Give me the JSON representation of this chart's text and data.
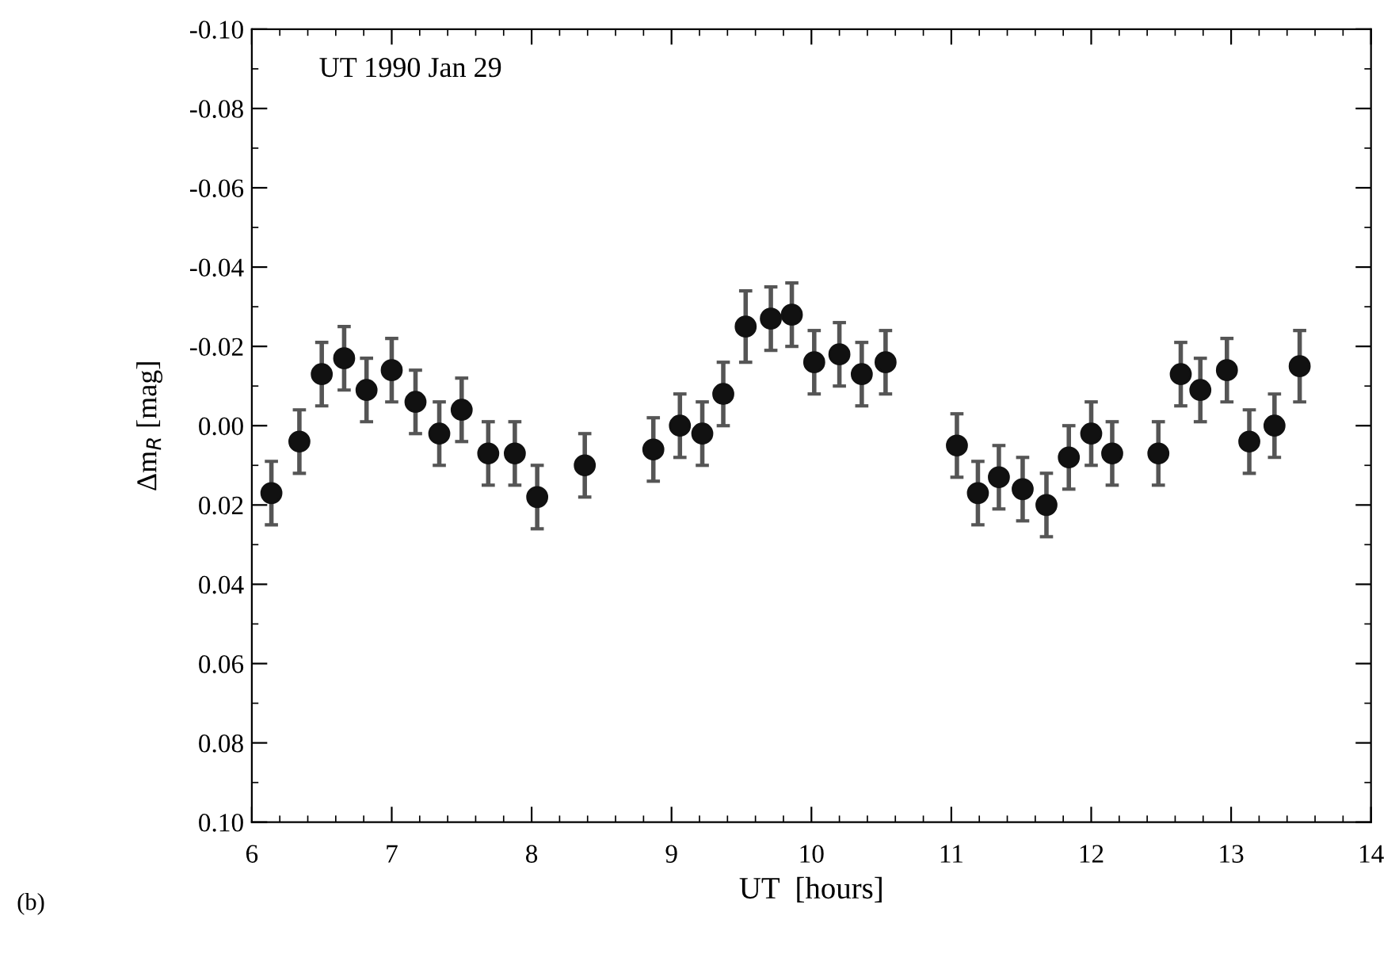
{
  "chart_data": {
    "type": "scatter",
    "xlabel": "UT  [hours]",
    "ylabel": "Δm$_{R}$ [mag]",
    "annotations": [
      "UT 1990 Jan 29",
      "(b)"
    ],
    "x": [
      6.14,
      6.34,
      6.5,
      6.66,
      6.82,
      7.0,
      7.17,
      7.34,
      7.5,
      7.69,
      7.88,
      8.04,
      8.38,
      8.87,
      9.06,
      9.22,
      9.37,
      9.53,
      9.71,
      9.86,
      10.02,
      10.2,
      10.36,
      10.53,
      11.04,
      11.19,
      11.34,
      11.51,
      11.68,
      11.84,
      12.0,
      12.15,
      12.48,
      12.64,
      12.78,
      12.97,
      13.13,
      13.31,
      13.49
    ],
    "values": [
      0.017,
      0.004,
      -0.013,
      -0.017,
      -0.009,
      -0.014,
      -0.006,
      0.002,
      -0.004,
      0.007,
      0.007,
      0.018,
      0.01,
      0.006,
      0.0,
      0.002,
      -0.008,
      -0.025,
      -0.027,
      -0.028,
      -0.016,
      -0.018,
      -0.013,
      -0.016,
      0.005,
      0.017,
      0.013,
      0.016,
      0.02,
      0.008,
      0.002,
      0.007,
      0.007,
      -0.013,
      -0.009,
      -0.014,
      0.004,
      0.0,
      -0.015
    ],
    "errors": [
      0.008,
      0.008,
      0.008,
      0.008,
      0.008,
      0.008,
      0.008,
      0.008,
      0.008,
      0.008,
      0.008,
      0.008,
      0.008,
      0.008,
      0.008,
      0.008,
      0.008,
      0.009,
      0.008,
      0.008,
      0.008,
      0.008,
      0.008,
      0.008,
      0.008,
      0.008,
      0.008,
      0.008,
      0.008,
      0.008,
      0.008,
      0.008,
      0.008,
      0.008,
      0.008,
      0.008,
      0.008,
      0.008,
      0.009
    ],
    "color": "#111111",
    "marker": "circle",
    "grid": false,
    "xlim": [
      6,
      14
    ],
    "xticks": [
      6,
      7,
      8,
      9,
      10,
      11,
      12,
      13,
      14
    ],
    "ylim": [
      0.1,
      -0.1
    ],
    "yticks": [
      {
        "value": -0.1,
        "label": "-0.10"
      },
      {
        "value": -0.08,
        "label": "-0.08"
      },
      {
        "value": -0.06,
        "label": "-0.06"
      },
      {
        "value": -0.04,
        "label": "-0.04"
      },
      {
        "value": -0.02,
        "label": "-0.02"
      },
      {
        "value": 0.0,
        "label": "0.00"
      },
      {
        "value": 0.02,
        "label": "0.02"
      },
      {
        "value": 0.04,
        "label": "0.04"
      },
      {
        "value": 0.06,
        "label": "0.06"
      },
      {
        "value": 0.08,
        "label": "0.08"
      },
      {
        "value": 0.1,
        "label": "0.10"
      }
    ]
  }
}
